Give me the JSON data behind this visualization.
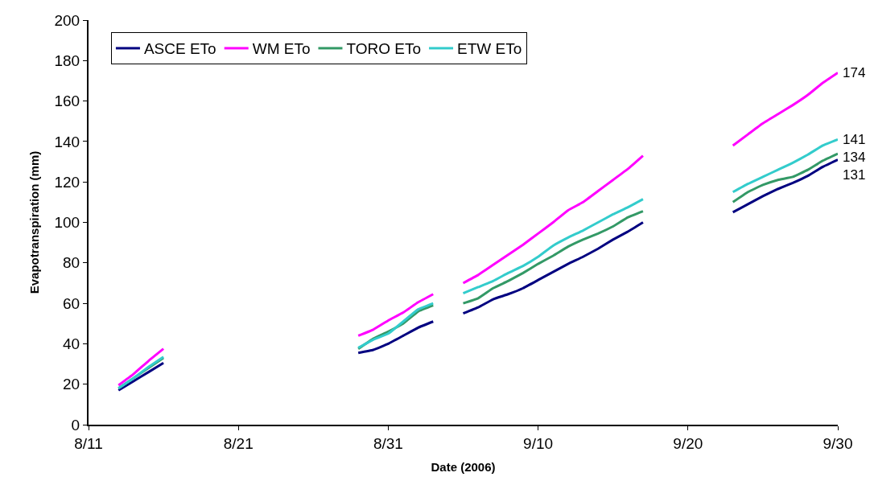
{
  "chart_data": {
    "type": "line",
    "xlabel": "Date (2006)",
    "ylabel": "Evapotranspiration (mm)",
    "x": [
      "2006-08-13",
      "2006-08-14",
      "2006-08-15",
      "2006-08-16",
      "2006-08-17",
      "2006-08-29",
      "2006-08-30",
      "2006-08-31",
      "2006-09-01",
      "2006-09-02",
      "2006-09-03",
      "2006-09-04",
      "2006-09-05",
      "2006-09-06",
      "2006-09-07",
      "2006-09-08",
      "2006-09-09",
      "2006-09-10",
      "2006-09-11",
      "2006-09-12",
      "2006-09-13",
      "2006-09-14",
      "2006-09-15",
      "2006-09-16",
      "2006-09-17",
      "2006-09-18",
      "2006-09-23",
      "2006-09-24",
      "2006-09-25",
      "2006-09-26",
      "2006-09-27",
      "2006-09-28",
      "2006-09-29",
      "2006-09-30"
    ],
    "series": [
      {
        "name": "ASCE ETo",
        "color": "#000080",
        "values": [
          17,
          21.5,
          26,
          30.5,
          null,
          35.5,
          37,
          40,
          44,
          48,
          51,
          null,
          55,
          58,
          62,
          64.5,
          67.5,
          71.5,
          75.5,
          79.5,
          83,
          87,
          91.5,
          95.5,
          100,
          null,
          105,
          109,
          113,
          116.5,
          119.5,
          123,
          127.5,
          131
        ]
      },
      {
        "name": "WM ETo",
        "color": "#ff00ff",
        "values": [
          19.5,
          25,
          31.5,
          37.5,
          null,
          44,
          47,
          51.5,
          55.5,
          60.5,
          64.5,
          null,
          70,
          74,
          79,
          84,
          89,
          94.5,
          100,
          106,
          110,
          115.5,
          121,
          126.5,
          133,
          null,
          138,
          143.5,
          149,
          153.5,
          158,
          163,
          169,
          174
        ]
      },
      {
        "name": "TORO ETo",
        "color": "#339966",
        "values": [
          18,
          23,
          28,
          33,
          null,
          37.5,
          42.5,
          46,
          50,
          56,
          59,
          null,
          60,
          62.5,
          67.5,
          71,
          75,
          79.5,
          83.5,
          88,
          91.5,
          94.5,
          98,
          102.5,
          105.5,
          null,
          110,
          115,
          118.5,
          121,
          122.5,
          126,
          130.5,
          134
        ]
      },
      {
        "name": "ETW ETo",
        "color": "#33cccc",
        "values": [
          18,
          23,
          28.5,
          33.5,
          null,
          38,
          42,
          45,
          51,
          57,
          60,
          null,
          65,
          68,
          71,
          75,
          78.5,
          83,
          88.5,
          92.5,
          96,
          100,
          104,
          107.5,
          111.5,
          null,
          115,
          119,
          122.5,
          126,
          129.5,
          133.5,
          138,
          141
        ]
      }
    ],
    "annotations": [
      {
        "text": "174",
        "x": "2006-09-30",
        "y": 174
      },
      {
        "text": "141",
        "x": "2006-09-30",
        "y": 141
      },
      {
        "text": "134",
        "x": "2006-09-30",
        "y": 134
      },
      {
        "text": "131",
        "x": "2006-09-30",
        "y": 131
      }
    ],
    "xlim": [
      "2006-08-11",
      "2006-09-30"
    ],
    "xticks": [
      {
        "value": "2006-08-11",
        "label": "8/11"
      },
      {
        "value": "2006-08-21",
        "label": "8/21"
      },
      {
        "value": "2006-08-31",
        "label": "8/31"
      },
      {
        "value": "2006-09-10",
        "label": "9/10"
      },
      {
        "value": "2006-09-20",
        "label": "9/20"
      },
      {
        "value": "2006-09-30",
        "label": "9/30"
      }
    ],
    "ylim": [
      0,
      200
    ],
    "yticks": [
      0,
      20,
      40,
      60,
      80,
      100,
      120,
      140,
      160,
      180,
      200
    ],
    "legend": "top left",
    "marker": "none",
    "line_style": "solid"
  }
}
